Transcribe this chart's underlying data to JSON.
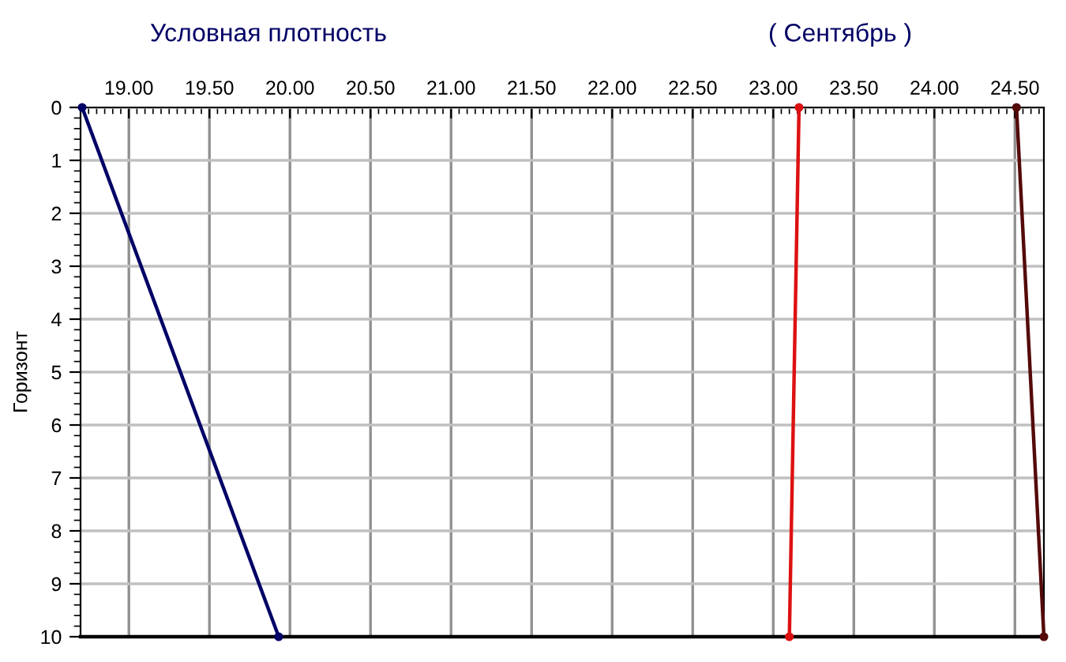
{
  "chart_data": {
    "type": "line",
    "title": "Условная плотность",
    "subtitle": "( Сентябрь )",
    "ylabel": "Горизонт",
    "series": [
      {
        "color": "#000066",
        "x": [
          18.71,
          19.93
        ],
        "values": [
          0,
          10
        ]
      },
      {
        "color": "#dd1111",
        "x": [
          23.16,
          23.1
        ],
        "values": [
          0,
          10
        ]
      },
      {
        "color": "#550a0a",
        "x": [
          24.51,
          24.68
        ],
        "values": [
          0,
          10
        ]
      }
    ],
    "xlim": [
      18.7,
      24.68
    ],
    "xticks": [
      {
        "value": 19,
        "label": "19.00"
      },
      {
        "value": 19.5,
        "label": "19.50"
      },
      {
        "value": 20,
        "label": "20.00"
      },
      {
        "value": 20.5,
        "label": "20.50"
      },
      {
        "value": 21,
        "label": "21.00"
      },
      {
        "value": 21.5,
        "label": "21.50"
      },
      {
        "value": 22,
        "label": "22.00"
      },
      {
        "value": 22.5,
        "label": "22.50"
      },
      {
        "value": 23,
        "label": "23.00"
      },
      {
        "value": 23.5,
        "label": "23.50"
      },
      {
        "value": 24,
        "label": "24.00"
      },
      {
        "value": 24.5,
        "label": "24.50"
      }
    ],
    "ylim": [
      10,
      0
    ],
    "yticks": [
      0,
      1,
      2,
      3,
      4,
      5,
      6,
      7,
      8,
      9,
      10
    ],
    "grid": true,
    "marker": "circle",
    "line_style": "solid"
  }
}
